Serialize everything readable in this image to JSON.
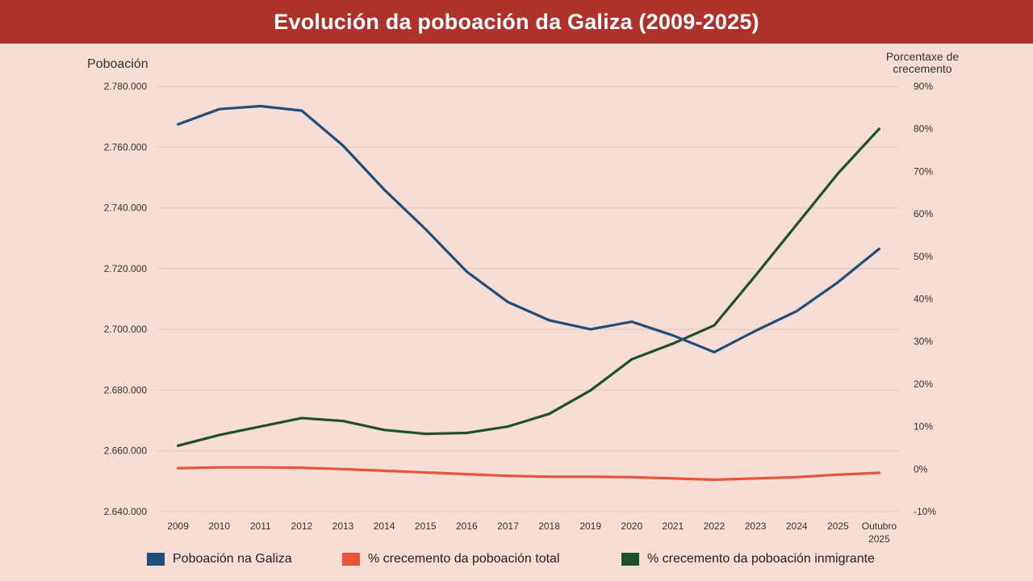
{
  "title": "Evolución da poboación da Galiza (2009-2025)",
  "chart_data": {
    "type": "line",
    "title": "Evolución da poboación da Galiza (2009-2025)",
    "categories": [
      "2009",
      "2010",
      "2011",
      "2012",
      "2013",
      "2014",
      "2015",
      "2016",
      "2017",
      "2018",
      "2019",
      "2020",
      "2021",
      "2022",
      "2023",
      "2024",
      "2025",
      "Outubro 2025"
    ],
    "y_left": {
      "label": "Poboación",
      "range": [
        2640000,
        2780000
      ],
      "ticks": [
        "2.640.000",
        "2.660.000",
        "2.680.000",
        "2.700.000",
        "2.720.000",
        "2.740.000",
        "2.760.000",
        "2.780.000"
      ]
    },
    "y_right": {
      "label": "Porcentaxe de crecemento",
      "range": [
        -10,
        90
      ],
      "ticks": [
        "-10%",
        "0%",
        "10%",
        "20%",
        "30%",
        "40%",
        "50%",
        "60%",
        "70%",
        "80%",
        "90%"
      ]
    },
    "grid": true,
    "legend_position": "bottom",
    "series": [
      {
        "name": "Poboación na Galiza",
        "axis": "left",
        "color": "#1f4e79",
        "values": [
          2767500,
          2772500,
          2773500,
          2772000,
          2760500,
          2746000,
          2733000,
          2719000,
          2709000,
          2703000,
          2700000,
          2702500,
          2698000,
          2692500,
          2699500,
          2706000,
          2715500,
          2726500
        ]
      },
      {
        "name": "% crecemento da poboación total",
        "axis": "right",
        "color": "#e8543a",
        "values": [
          0.2,
          0.4,
          0.4,
          0.3,
          0,
          -0.4,
          -0.8,
          -1.2,
          -1.6,
          -1.8,
          -1.8,
          -1.9,
          -2.2,
          -2.5,
          -2.2,
          -1.9,
          -1.3,
          -0.9
        ]
      },
      {
        "name": "% crecemento da poboación inmigrante",
        "axis": "right",
        "color": "#1d5128",
        "values": [
          5.5,
          8,
          10,
          12,
          11.3,
          9.2,
          8.3,
          8.5,
          10,
          13,
          18.5,
          25.8,
          29.5,
          33.8,
          45.5,
          57.5,
          69.5,
          80
        ]
      }
    ]
  }
}
